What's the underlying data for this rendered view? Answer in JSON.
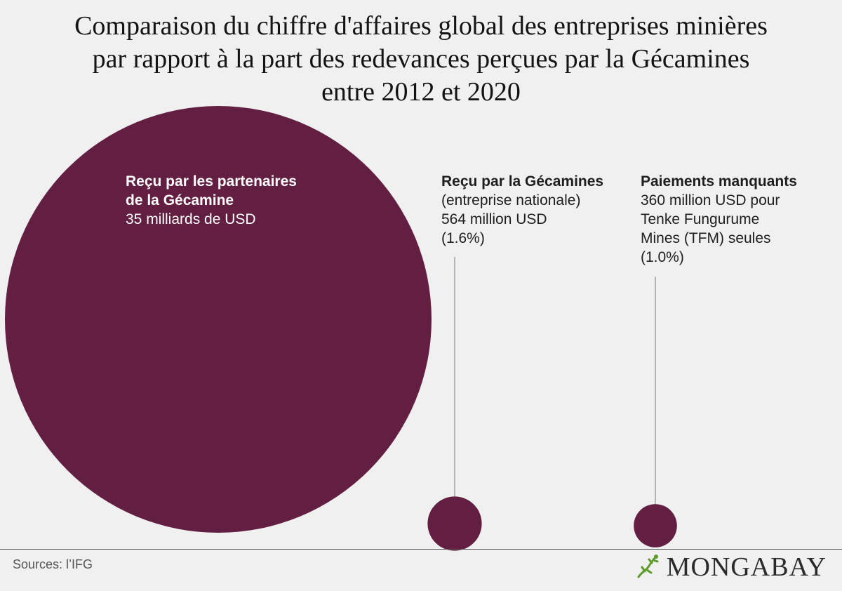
{
  "title_lines": [
    "Comparaison du chiffre d'affaires global des entreprises minières",
    "par rapport à la part des redevances perçues par la Gécamines",
    "entre 2012 et 2020"
  ],
  "chart_data": {
    "type": "bubble",
    "series": [
      {
        "label_bold": [
          "Reçu par les partenaires",
          "de la Gécamine"
        ],
        "label_text": [
          "35 milliards de USD"
        ],
        "value": 35000
      },
      {
        "label_bold": [
          "Reçu par la Gécamines"
        ],
        "label_text": [
          "(entreprise nationale)",
          "564 million USD",
          "(1.6%)"
        ],
        "value": 564
      },
      {
        "label_bold": [
          "Paiements manquants"
        ],
        "label_text": [
          "360 million USD pour",
          "Tenke Fungurume",
          "Mines (TFM) seules",
          "(1.0%)"
        ],
        "value": 360
      }
    ],
    "colors": {
      "bubble": "#631f41",
      "leader": "#b5b5b5"
    }
  },
  "source": "Sources: l’IFG",
  "logo": {
    "icon": "gecko-icon",
    "text": "MONGABAY",
    "color": "#5d9b2a"
  }
}
